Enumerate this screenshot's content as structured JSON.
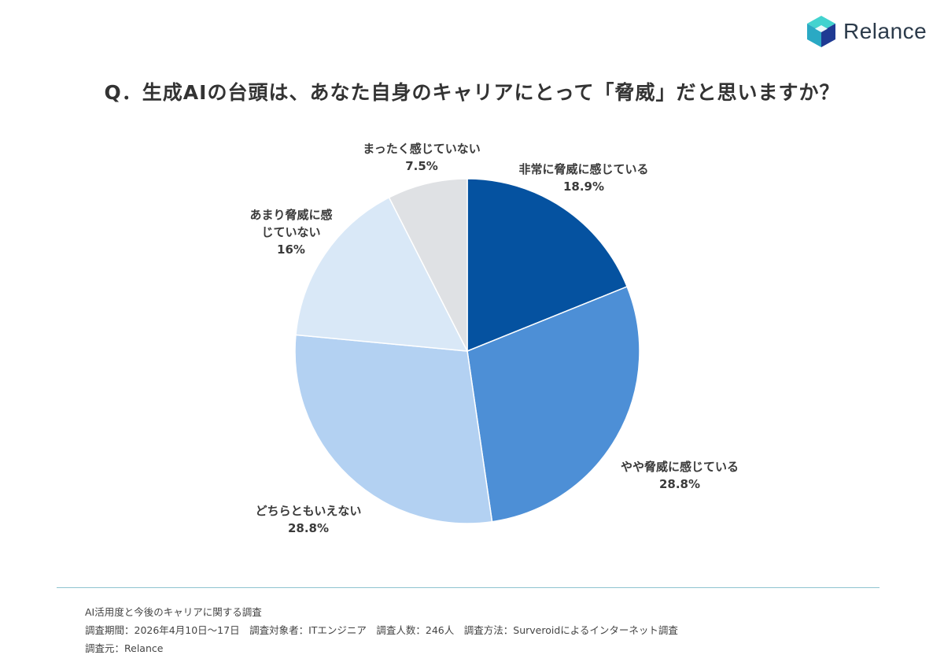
{
  "brand": {
    "logo_text": "Relance",
    "logo_icon": "cube-logo-icon",
    "colors": {
      "teal": "#2ec4c0",
      "navy": "#1f3a93"
    }
  },
  "title": "Q．生成AIの台頭は、あなた自身のキャリアにとって「脅威」だと思いますか？",
  "chart_data": {
    "type": "pie",
    "title": "Q．生成AIの台頭は、あなた自身のキャリアにとって「脅威」だと思いますか？",
    "start_angle": "12 o'clock",
    "direction": "clockwise",
    "slices": [
      {
        "label": "非常に脅威に感じている",
        "label_lines": [
          "非常に脅威に感じている"
        ],
        "value": 18.9,
        "value_label": "18.9%",
        "color": "#0552a0"
      },
      {
        "label": "やや脅威に感じている",
        "label_lines": [
          "やや脅威に感じている"
        ],
        "value": 28.8,
        "value_label": "28.8%",
        "color": "#4d8fd6"
      },
      {
        "label": "どちらともいえない",
        "label_lines": [
          "どちらともいえない"
        ],
        "value": 28.8,
        "value_label": "28.8%",
        "color": "#b3d1f2"
      },
      {
        "label": "あまり脅威に感じていない",
        "label_lines": [
          "あまり脅威に感",
          "じていない"
        ],
        "value": 16,
        "value_label": "16%",
        "color": "#d9e8f7"
      },
      {
        "label": "まったく感じていない",
        "label_lines": [
          "まったく感じていない"
        ],
        "value": 7.5,
        "value_label": "7.5%",
        "color": "#dfe1e4"
      }
    ]
  },
  "footer": {
    "survey_name": "AI活用度と今後のキャリアに関する調査",
    "details": "調査期間：2026年4月10日～17日　調査対象者：ITエンジニア　調査人数：246人　調査方法：Surveroidによるインターネット調査",
    "source": "調査元：Relance"
  }
}
